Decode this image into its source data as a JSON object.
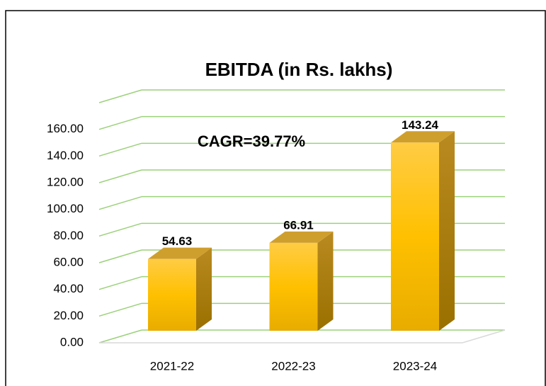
{
  "chart_data": {
    "type": "bar3d",
    "title": "EBITDA (in Rs. lakhs)",
    "annotation": "CAGR=39.77%",
    "categories": [
      "2021-22",
      "2022-23",
      "2023-24"
    ],
    "values": [
      54.63,
      66.91,
      143.24
    ],
    "color": "#ffc000",
    "ylim": [
      0,
      180
    ],
    "yticks": [
      {
        "value": 0,
        "label": "0.00"
      },
      {
        "value": 20,
        "label": "20.00"
      },
      {
        "value": 40,
        "label": "40.00"
      },
      {
        "value": 60,
        "label": "60.00"
      },
      {
        "value": 80,
        "label": "80.00"
      },
      {
        "value": 100,
        "label": "100.00"
      },
      {
        "value": 120,
        "label": "120.00"
      },
      {
        "value": 140,
        "label": "140.00"
      },
      {
        "value": 160,
        "label": "160.00"
      }
    ],
    "grid": true
  }
}
